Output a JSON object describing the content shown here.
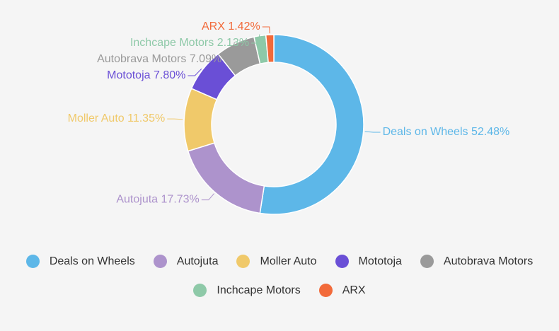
{
  "chart_data": {
    "type": "donut",
    "categories": [
      "Deals on Wheels",
      "Autojuta",
      "Moller Auto",
      "Mototoja",
      "Autobrava Motors",
      "Inchcape Motors",
      "ARX"
    ],
    "values": [
      52.48,
      17.73,
      11.35,
      7.8,
      7.09,
      2.13,
      1.42
    ],
    "value_labels": [
      "52.48%",
      "17.73%",
      "11.35%",
      "7.80%",
      "7.09%",
      "2.13%",
      "1.42%"
    ],
    "colors": [
      "#5db7e8",
      "#ad93cc",
      "#f0c96a",
      "#6a4fd6",
      "#9a9a9a",
      "#8ec9a8",
      "#f26a3a"
    ],
    "legend": "bottom"
  }
}
